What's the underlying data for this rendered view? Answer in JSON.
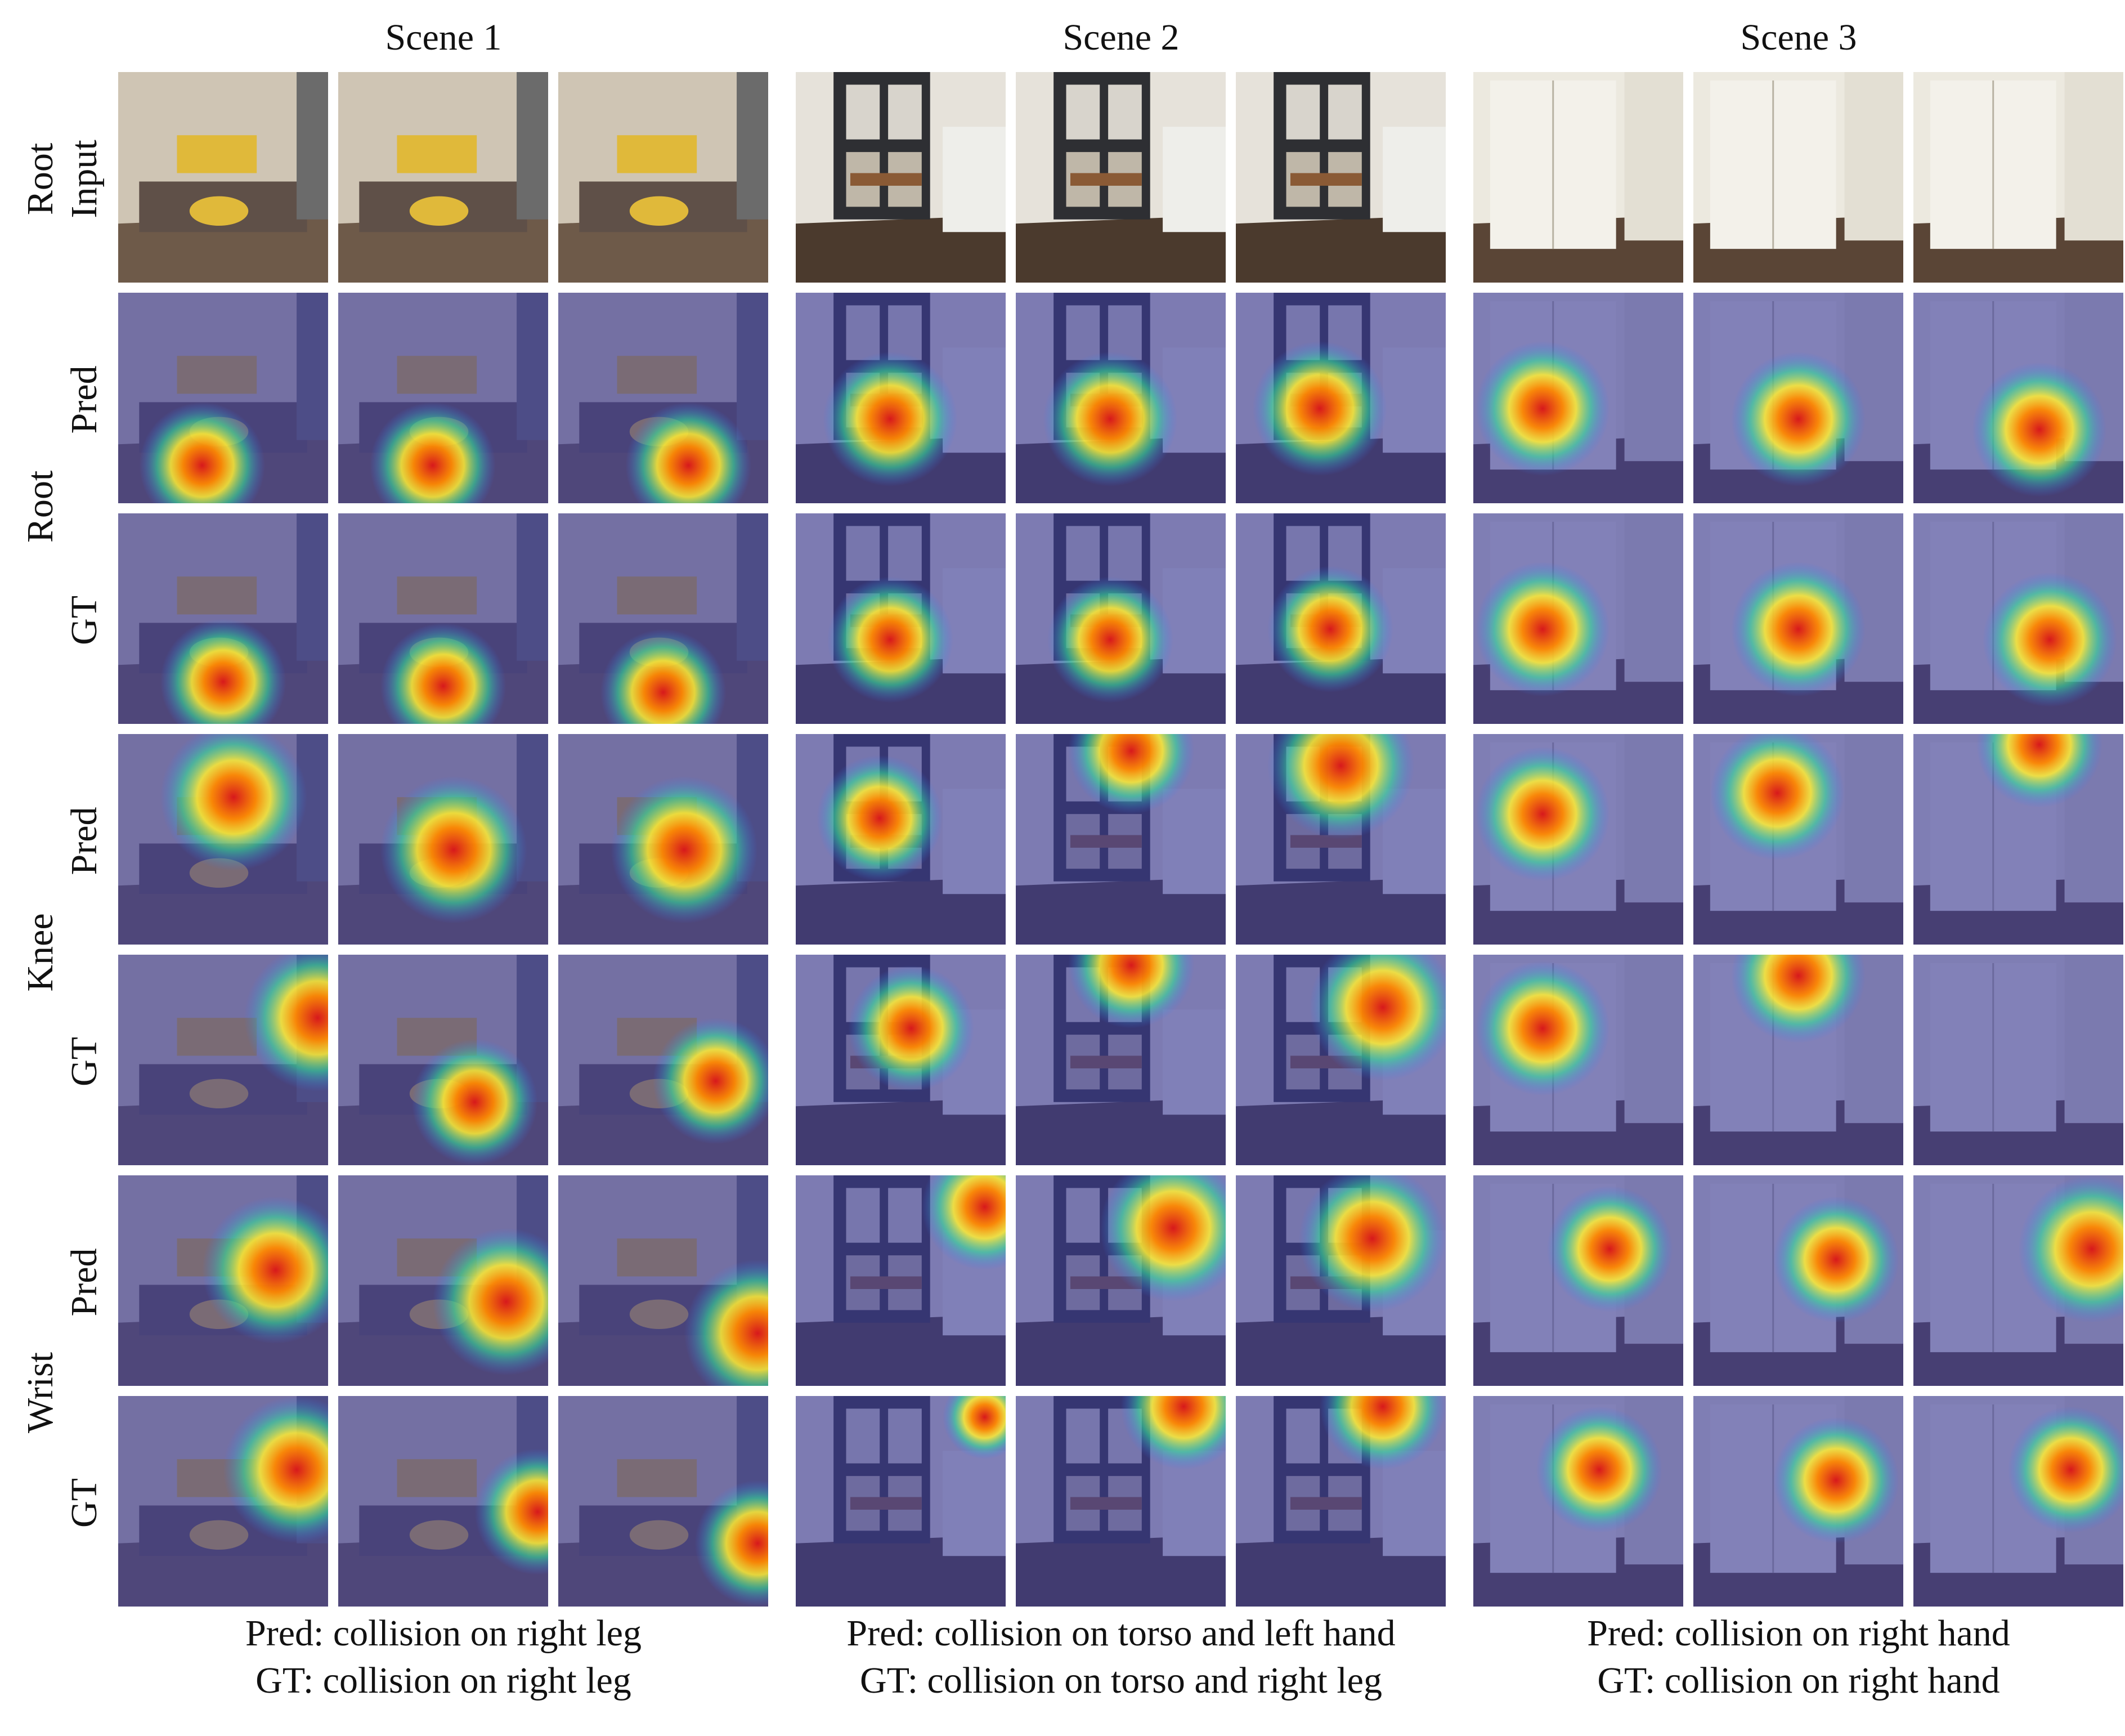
{
  "scenes": [
    {
      "title": "Scene 1",
      "caption_pred": "Pred: collision on right leg",
      "caption_gt": "GT: collision on right leg"
    },
    {
      "title": "Scene 2",
      "caption_pred": "Pred: collision on torso and left hand",
      "caption_gt": "GT: collision on torso and right leg"
    },
    {
      "title": "Scene 3",
      "caption_pred": "Pred: collision on right hand",
      "caption_gt": "GT: collision on right hand"
    }
  ],
  "row_labels": [
    "Input",
    "Pred",
    "GT",
    "Pred",
    "GT",
    "Pred",
    "GT"
  ],
  "group_labels": [
    "Root",
    "Root",
    "Knee",
    "Wrist"
  ],
  "scene_palettes": [
    {
      "wall": "#cfc5b4",
      "floor": "#6e5a49",
      "furniture": "#4a4038",
      "accent": "#e0b93a"
    },
    {
      "wall": "#e6e2da",
      "floor": "#4b3a2d",
      "furniture": "#2e2f33",
      "accent": "#8a5a35"
    },
    {
      "wall": "#ece9df",
      "floor": "#5a4536",
      "furniture": "#d9d5c9",
      "accent": "#b8b2a3"
    }
  ],
  "overlay_tint": "#3c3c9a",
  "heatmap_colors": [
    "#d7191c",
    "#ff8800",
    "#ffee33",
    "#33dd99",
    "#3377ff"
  ]
}
